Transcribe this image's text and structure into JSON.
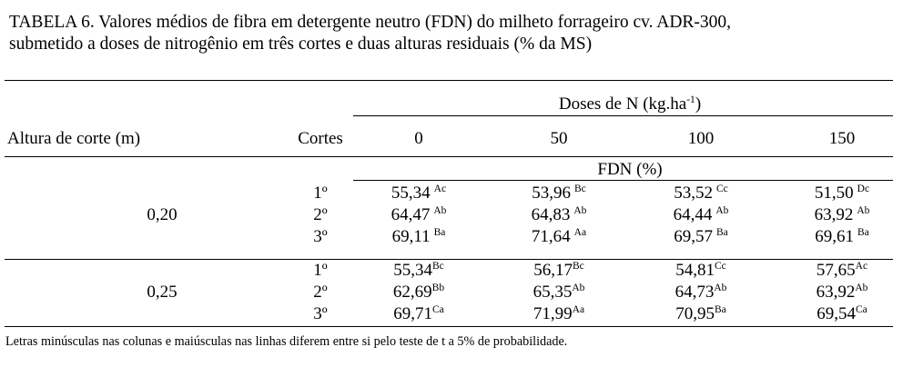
{
  "title_line1": "TABELA 6. Valores médios de fibra em detergente neutro (FDN) do milheto forrageiro cv. ADR-300,",
  "title_line2": "submetido a doses de nitrogênio em três cortes e duas alturas residuais (% da MS)",
  "header": {
    "doses_label": "Doses de N (kg.ha",
    "doses_sup": "-1",
    "doses_close": ")",
    "altura": "Altura de corte (m)",
    "cortes": "Cortes",
    "doses": [
      "0",
      "50",
      "100",
      "150"
    ],
    "fdn": "FDN (%)"
  },
  "groups": [
    {
      "altura": "0,20",
      "rows": [
        {
          "corte": "1º",
          "cells": [
            {
              "v": "55,34",
              "s": "Ac"
            },
            {
              "v": "53,96",
              "s": "Bc"
            },
            {
              "v": "53,52",
              "s": "Cc"
            },
            {
              "v": "51,50",
              "s": "Dc"
            }
          ]
        },
        {
          "corte": "2º",
          "cells": [
            {
              "v": "64,47",
              "s": "Ab"
            },
            {
              "v": "64,83",
              "s": "Ab"
            },
            {
              "v": "64,44",
              "s": "Ab"
            },
            {
              "v": "63,92",
              "s": "Ab"
            }
          ]
        },
        {
          "corte": "3º",
          "cells": [
            {
              "v": "69,11",
              "s": "Ba"
            },
            {
              "v": "71,64",
              "s": "Aa"
            },
            {
              "v": "69,57",
              "s": "Ba"
            },
            {
              "v": "69,61",
              "s": "Ba"
            }
          ]
        }
      ]
    },
    {
      "altura": "0,25",
      "rows": [
        {
          "corte": "1º",
          "cells": [
            {
              "v": "55,34",
              "s": "Bc"
            },
            {
              "v": "56,17",
              "s": "Bc"
            },
            {
              "v": "54,81",
              "s": "Cc"
            },
            {
              "v": "57,65",
              "s": "Ac"
            }
          ]
        },
        {
          "corte": "2º",
          "cells": [
            {
              "v": "62,69",
              "s": "Bb"
            },
            {
              "v": "65,35",
              "s": "Ab"
            },
            {
              "v": "64,73",
              "s": "Ab"
            },
            {
              "v": "63,92",
              "s": "Ab"
            }
          ]
        },
        {
          "corte": "3º",
          "cells": [
            {
              "v": "69,71",
              "s": "Ca"
            },
            {
              "v": "71,99",
              "s": "Aa"
            },
            {
              "v": "70,95",
              "s": "Ba"
            },
            {
              "v": "69,54",
              "s": "Ca"
            }
          ]
        }
      ]
    }
  ],
  "footnote": "Letras minúsculas nas colunas e maiúsculas nas linhas diferem entre si pelo teste de t a 5% de probabilidade."
}
